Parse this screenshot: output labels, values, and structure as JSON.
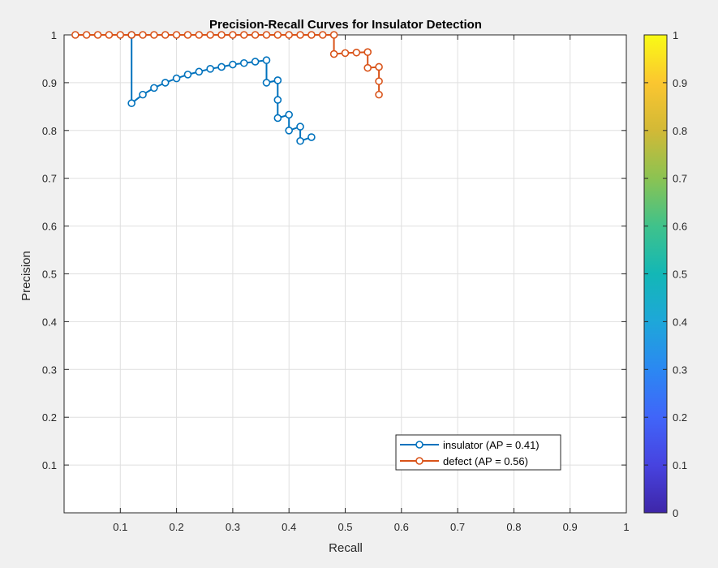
{
  "chart_data": {
    "type": "line",
    "title": "Precision-Recall Curves for Insulator Detection",
    "xlabel": "Recall",
    "ylabel": "Precision",
    "xlim": [
      0,
      1
    ],
    "ylim": [
      0,
      1
    ],
    "xticks": [
      "0.1",
      "0.2",
      "0.3",
      "0.4",
      "0.5",
      "0.6",
      "0.7",
      "0.8",
      "0.9",
      "1"
    ],
    "yticks": [
      "0.1",
      "0.2",
      "0.3",
      "0.4",
      "0.5",
      "0.6",
      "0.7",
      "0.8",
      "0.9",
      "1"
    ],
    "grid": true,
    "legend_position": "bottom-right",
    "series": [
      {
        "name": "insulator (AP = 0.41)",
        "color": "#0072bd",
        "marker": "circle",
        "x": [
          0.12,
          0.12,
          0.14,
          0.16,
          0.18,
          0.2,
          0.22,
          0.24,
          0.26,
          0.28,
          0.3,
          0.32,
          0.34,
          0.36,
          0.36,
          0.38,
          0.38,
          0.38,
          0.4,
          0.4,
          0.42,
          0.42,
          0.44
        ],
        "y": [
          1.0,
          0.857,
          0.875,
          0.889,
          0.9,
          0.909,
          0.917,
          0.923,
          0.929,
          0.933,
          0.938,
          0.941,
          0.944,
          0.947,
          0.9,
          0.905,
          0.864,
          0.826,
          0.833,
          0.8,
          0.808,
          0.778,
          0.786
        ]
      },
      {
        "name": "defect (AP = 0.56)",
        "color": "#d95319",
        "marker": "circle",
        "x": [
          0.02,
          0.04,
          0.06,
          0.08,
          0.1,
          0.12,
          0.14,
          0.16,
          0.18,
          0.2,
          0.22,
          0.24,
          0.26,
          0.28,
          0.3,
          0.32,
          0.34,
          0.36,
          0.38,
          0.4,
          0.42,
          0.44,
          0.46,
          0.48,
          0.48,
          0.5,
          0.52,
          0.54,
          0.54,
          0.56,
          0.56,
          0.56
        ],
        "y": [
          1,
          1,
          1,
          1,
          1,
          1,
          1,
          1,
          1,
          1,
          1,
          1,
          1,
          1,
          1,
          1,
          1,
          1,
          1,
          1,
          1,
          1,
          1,
          1,
          0.96,
          0.962,
          0.963,
          0.964,
          0.931,
          0.933,
          0.903,
          0.875
        ]
      }
    ],
    "colorbar": {
      "ticks": [
        "0",
        "0.1",
        "0.2",
        "0.3",
        "0.4",
        "0.5",
        "0.6",
        "0.7",
        "0.8",
        "0.9",
        "1"
      ],
      "colormap": [
        "#3e26a8",
        "#4743e0",
        "#4065f9",
        "#2b88f2",
        "#1ea7d9",
        "#13b7b6",
        "#3fc28b",
        "#8bc352",
        "#d2b936",
        "#fbc630",
        "#f9fb15"
      ]
    }
  }
}
